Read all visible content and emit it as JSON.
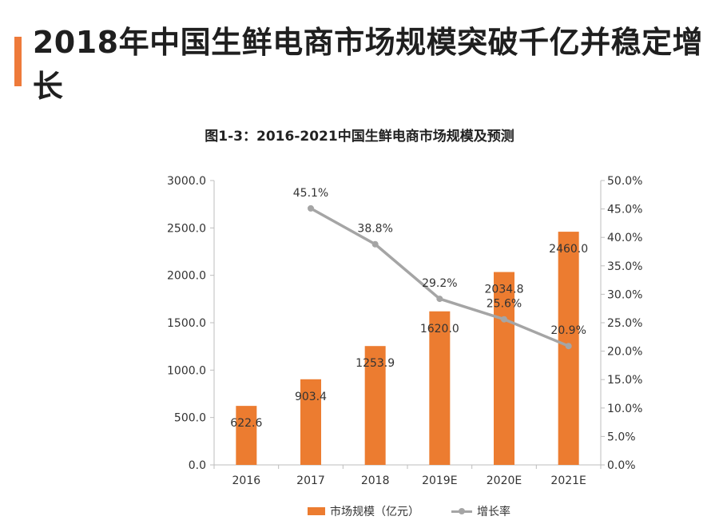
{
  "headline": "2018年中国生鲜电商市场规模突破千亿并稳定增长",
  "chart_data": {
    "type": "bar",
    "title": "图1-3：2016-2021中国生鲜电商市场规模及预测",
    "categories": [
      "2016",
      "2017",
      "2018",
      "2019E",
      "2020E",
      "2021E"
    ],
    "series": [
      {
        "name": "市场规模（亿元）",
        "type": "bar",
        "axis": "left",
        "color": "#ec7c30",
        "values": [
          622.6,
          903.4,
          1253.9,
          1620.0,
          2034.8,
          2460.0
        ],
        "labels": [
          "622.6",
          "903.4",
          "1253.9",
          "1620.0",
          "2034.8",
          "2460.0"
        ]
      },
      {
        "name": "增长率",
        "type": "line",
        "axis": "right",
        "color": "#a5a5a5",
        "values": [
          null,
          45.1,
          38.8,
          29.2,
          25.6,
          20.9
        ],
        "labels": [
          null,
          "45.1%",
          "38.8%",
          "29.2%",
          "25.6%",
          "20.9%"
        ]
      }
    ],
    "y_left": {
      "range": [
        0,
        3000
      ],
      "ticks": [
        "0.0",
        "500.0",
        "1000.0",
        "1500.0",
        "2000.0",
        "2500.0",
        "3000.0"
      ]
    },
    "y_right": {
      "range": [
        0,
        50
      ],
      "ticks": [
        "0.0%",
        "5.0%",
        "10.0%",
        "15.0%",
        "20.0%",
        "25.0%",
        "30.0%",
        "35.0%",
        "40.0%",
        "45.0%",
        "50.0%"
      ]
    },
    "grid": false,
    "legend_position": "bottom"
  }
}
